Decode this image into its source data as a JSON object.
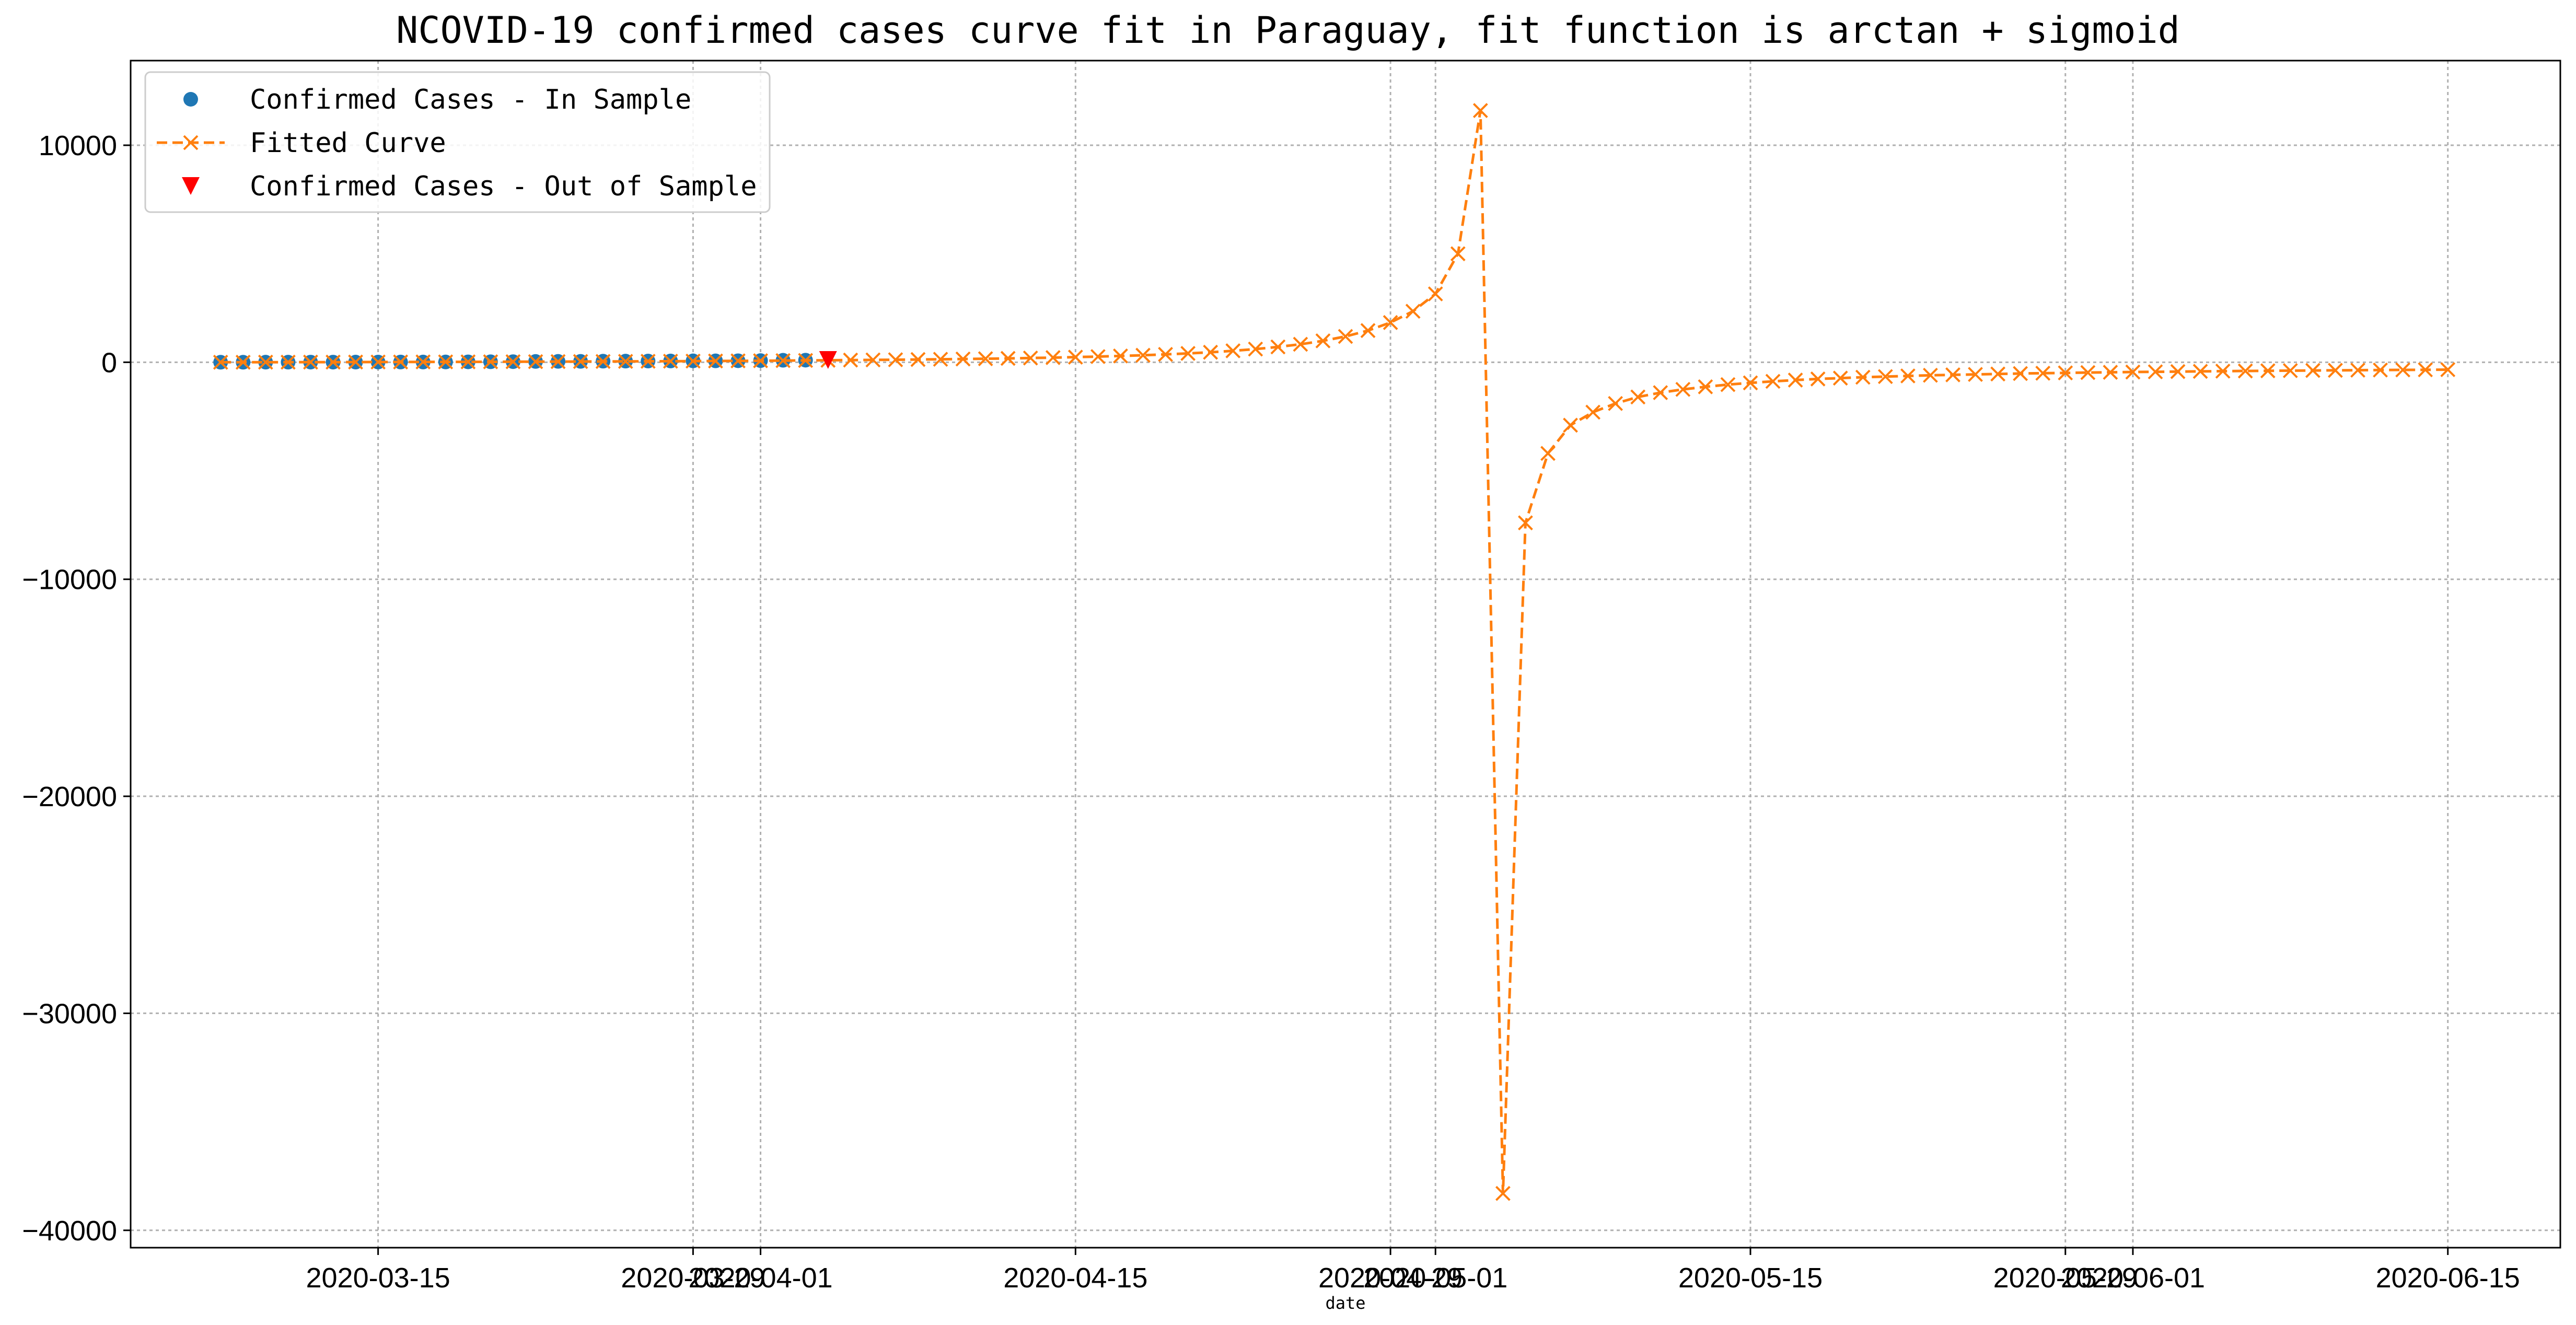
{
  "chart_data": {
    "type": "line",
    "title": "NCOVID-19 confirmed cases curve fit in Paraguay, fit function is arctan + sigmoid",
    "xlabel": "date",
    "ylabel": "",
    "ylim": [
      -40800,
      13900
    ],
    "xlim": [
      "2020-03-04",
      "2020-06-20"
    ],
    "grid": true,
    "legend_position": "upper-left",
    "x_tick_labels": [
      "2020-03-15",
      "2020-03-29",
      "2020-04-01",
      "2020-04-15",
      "2020-04-29",
      "2020-05-01",
      "2020-05-15",
      "2020-05-29",
      "2020-06-01",
      "2020-06-15"
    ],
    "y_ticks": [
      10000,
      0,
      -10000,
      -20000,
      -30000,
      -40000
    ],
    "y_tick_labels": [
      "10000",
      "0",
      "−10000",
      "−20000",
      "−30000",
      "−40000"
    ],
    "series": [
      {
        "name": "Confirmed Cases - In Sample",
        "color": "#1f77b4",
        "marker": "circle",
        "x": [
          "2020-03-08",
          "2020-03-09",
          "2020-03-10",
          "2020-03-11",
          "2020-03-12",
          "2020-03-13",
          "2020-03-14",
          "2020-03-15",
          "2020-03-16",
          "2020-03-17",
          "2020-03-18",
          "2020-03-19",
          "2020-03-20",
          "2020-03-21",
          "2020-03-22",
          "2020-03-23",
          "2020-03-24",
          "2020-03-25",
          "2020-03-26",
          "2020-03-27",
          "2020-03-28",
          "2020-03-29",
          "2020-03-30",
          "2020-03-31",
          "2020-04-01",
          "2020-04-02",
          "2020-04-03"
        ],
        "values": [
          1,
          1,
          5,
          5,
          6,
          6,
          7,
          9,
          11,
          11,
          13,
          18,
          22,
          27,
          37,
          41,
          41,
          50,
          52,
          56,
          59,
          64,
          65,
          69,
          77,
          92,
          96
        ]
      },
      {
        "name": "Fitted Curve",
        "color": "#ff7f0e",
        "marker": "x",
        "dashed": true,
        "x": [
          "2020-03-08",
          "2020-03-09",
          "2020-03-10",
          "2020-03-11",
          "2020-03-12",
          "2020-03-13",
          "2020-03-14",
          "2020-03-15",
          "2020-03-16",
          "2020-03-17",
          "2020-03-18",
          "2020-03-19",
          "2020-03-20",
          "2020-03-21",
          "2020-03-22",
          "2020-03-23",
          "2020-03-24",
          "2020-03-25",
          "2020-03-26",
          "2020-03-27",
          "2020-03-28",
          "2020-03-29",
          "2020-03-30",
          "2020-03-31",
          "2020-04-01",
          "2020-04-02",
          "2020-04-03",
          "2020-04-04",
          "2020-04-05",
          "2020-04-06",
          "2020-04-07",
          "2020-04-08",
          "2020-04-09",
          "2020-04-10",
          "2020-04-11",
          "2020-04-12",
          "2020-04-13",
          "2020-04-14",
          "2020-04-15",
          "2020-04-16",
          "2020-04-17",
          "2020-04-18",
          "2020-04-19",
          "2020-04-20",
          "2020-04-21",
          "2020-04-22",
          "2020-04-23",
          "2020-04-24",
          "2020-04-25",
          "2020-04-26",
          "2020-04-27",
          "2020-04-28",
          "2020-04-29",
          "2020-04-30",
          "2020-05-01",
          "2020-05-02",
          "2020-05-03",
          "2020-05-04",
          "2020-05-05",
          "2020-05-06",
          "2020-05-07",
          "2020-05-08",
          "2020-05-09",
          "2020-05-10",
          "2020-05-11",
          "2020-05-12",
          "2020-05-13",
          "2020-05-14",
          "2020-05-15",
          "2020-05-16",
          "2020-05-17",
          "2020-05-18",
          "2020-05-19",
          "2020-05-20",
          "2020-05-21",
          "2020-05-22",
          "2020-05-23",
          "2020-05-24",
          "2020-05-25",
          "2020-05-26",
          "2020-05-27",
          "2020-05-28",
          "2020-05-29",
          "2020-05-30",
          "2020-05-31",
          "2020-06-01",
          "2020-06-02",
          "2020-06-03",
          "2020-06-04",
          "2020-06-05",
          "2020-06-06",
          "2020-06-07",
          "2020-06-08",
          "2020-06-09",
          "2020-06-10",
          "2020-06-11",
          "2020-06-12",
          "2020-06-13",
          "2020-06-14",
          "2020-06-15"
        ],
        "values": [
          0,
          1,
          3,
          4,
          6,
          7,
          9,
          11,
          13,
          15,
          17,
          19,
          21,
          24,
          27,
          30,
          33,
          37,
          40,
          44,
          48,
          53,
          58,
          64,
          70,
          76,
          84,
          92,
          100,
          108,
          117,
          127,
          138,
          150,
          163,
          178,
          195,
          214,
          236,
          261,
          290,
          323,
          362,
          408,
          462,
          527,
          607,
          706,
          829,
          986,
          1190,
          1460,
          1830,
          2350,
          3150,
          5000,
          11600,
          -38300,
          -7400,
          -4200,
          -2900,
          -2300,
          -1900,
          -1600,
          -1400,
          -1250,
          -1130,
          -1030,
          -950,
          -880,
          -820,
          -770,
          -730,
          -690,
          -660,
          -630,
          -600,
          -580,
          -560,
          -540,
          -520,
          -505,
          -490,
          -475,
          -462,
          -450,
          -440,
          -430,
          -420,
          -410,
          -402,
          -394,
          -386,
          -379,
          -372,
          -365,
          -359,
          -353,
          -347,
          -341
        ]
      },
      {
        "name": "Confirmed Cases - Out of Sample",
        "color": "#ff0000",
        "marker": "triangle-down",
        "x": [
          "2020-04-04"
        ],
        "values": [
          104
        ]
      }
    ]
  }
}
